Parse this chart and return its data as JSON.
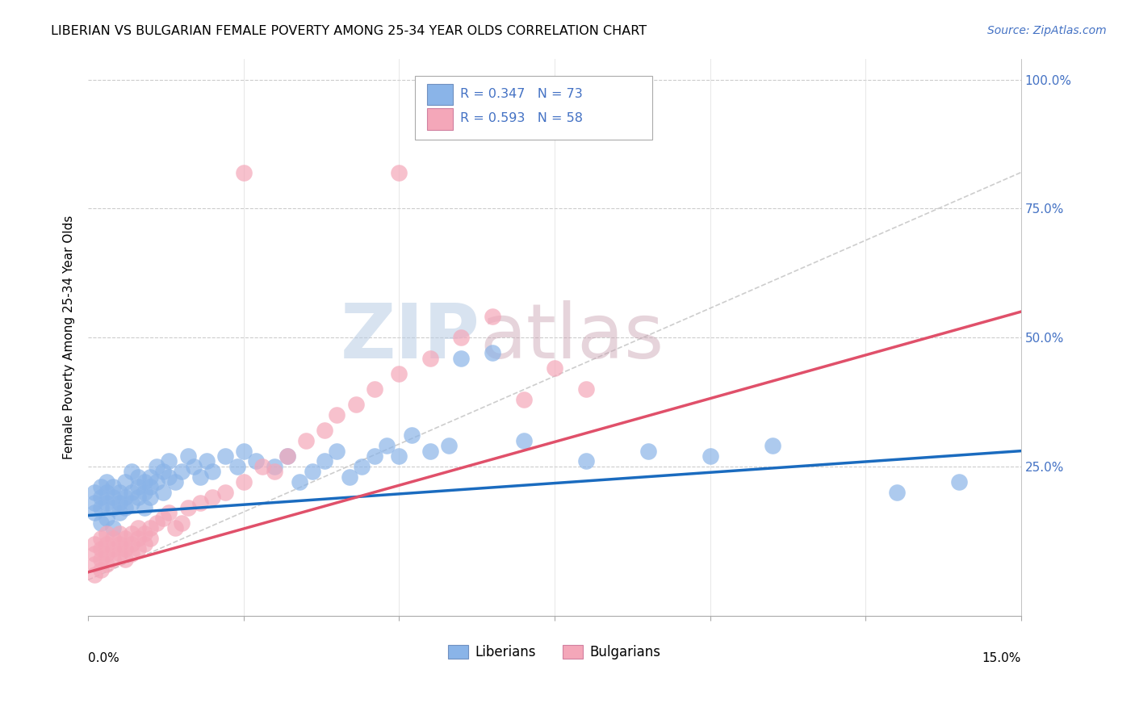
{
  "title": "LIBERIAN VS BULGARIAN FEMALE POVERTY AMONG 25-34 YEAR OLDS CORRELATION CHART",
  "source": "Source: ZipAtlas.com",
  "ylabel": "Female Poverty Among 25-34 Year Olds",
  "xmin": 0.0,
  "xmax": 0.15,
  "ymin": -0.04,
  "ymax": 1.04,
  "liberian_color": "#8ab4e8",
  "bulgarian_color": "#f4a7b9",
  "liberian_R": 0.347,
  "liberian_N": 73,
  "bulgarian_R": 0.593,
  "bulgarian_N": 58,
  "trend_blue": "#1a6bbf",
  "trend_pink": "#e0506a",
  "watermark_zip": "ZIP",
  "watermark_atlas": "atlas",
  "watermark_color_zip": "#b8cce8",
  "watermark_color_atlas": "#c8a8b8"
}
